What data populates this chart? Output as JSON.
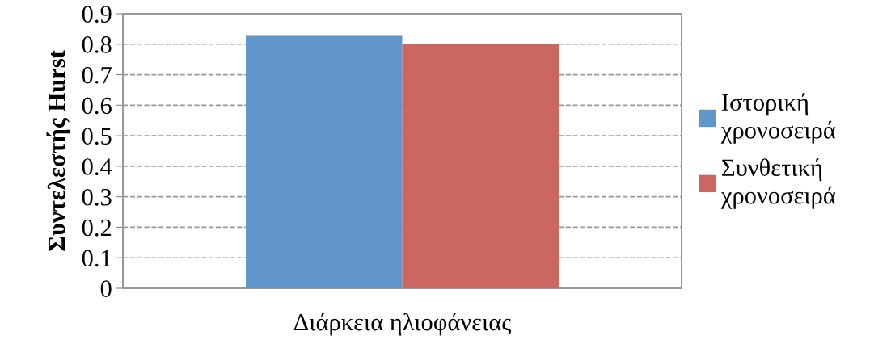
{
  "chart_data": {
    "type": "bar",
    "categories": [
      "Διάρκεια ηλιοφάνειας"
    ],
    "ylabel": "Συντελεστής Hurst",
    "series": [
      {
        "name": "Ιστορική χρονοσειρά",
        "color": "#6096c9",
        "values": [
          0.83
        ]
      },
      {
        "name": "Συνθετική χρονοσειρά",
        "color": "#cc6660",
        "values": [
          0.8
        ]
      }
    ],
    "ylim": [
      0,
      0.9
    ],
    "yticks": [
      0,
      0.1,
      0.2,
      0.3,
      0.4,
      0.5,
      0.6,
      0.7,
      0.8,
      0.9
    ],
    "grid": "y",
    "legend": "right"
  }
}
